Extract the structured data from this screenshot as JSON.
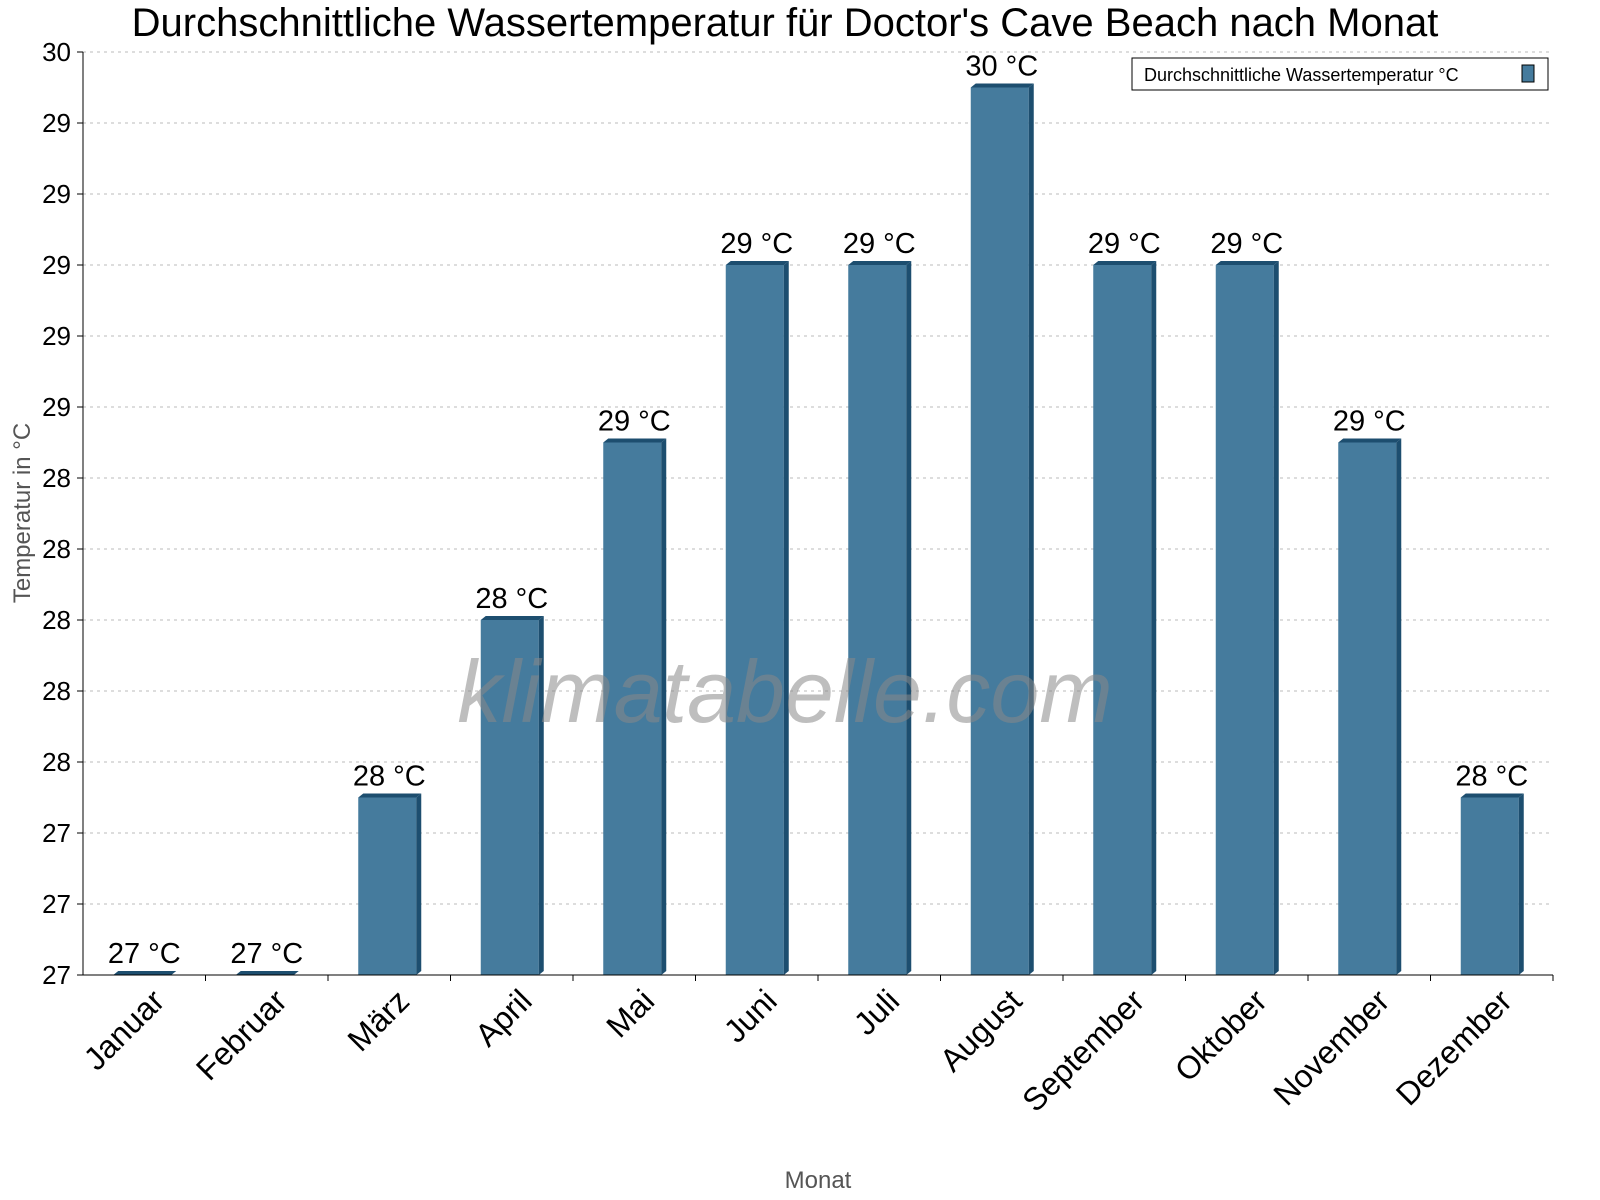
{
  "chart_data": {
    "type": "bar",
    "title": "Durchschnittliche Wassertemperatur für Doctor's Cave Beach nach Monat",
    "xlabel": "Monat",
    "ylabel": "Temperatur in °C",
    "categories": [
      "Januar",
      "Februar",
      "März",
      "April",
      "Mai",
      "Juni",
      "Juli",
      "August",
      "September",
      "Oktober",
      "November",
      "Dezember"
    ],
    "series": [
      {
        "name": "Durchschnittliche Wassertemperatur °C",
        "values": [
          27.0,
          27.0,
          27.5,
          28.0,
          28.5,
          29.0,
          29.0,
          29.5,
          29.0,
          29.0,
          28.5,
          27.5
        ],
        "labels": [
          "27 °C",
          "27 °C",
          "28 °C",
          "28 °C",
          "29 °C",
          "29 °C",
          "29 °C",
          "30 °C",
          "29 °C",
          "29 °C",
          "29 °C",
          "28 °C"
        ]
      }
    ],
    "ylim": [
      27.0,
      29.6
    ],
    "yticks": [
      27.0,
      27.2,
      27.4,
      27.6,
      27.8,
      28.0,
      28.2,
      28.4,
      28.6,
      28.8,
      29.0,
      29.2,
      29.4,
      29.6
    ],
    "ytick_labels": [
      "27",
      "27",
      "27",
      "28",
      "28",
      "28",
      "28",
      "28",
      "29",
      "29",
      "29",
      "29",
      "29",
      "30"
    ],
    "grid": true,
    "legend": "top-right",
    "colors": {
      "bar": "#457b9d",
      "bar_edge": "#1d4e6f"
    },
    "watermark": "klimatabelle.com"
  }
}
